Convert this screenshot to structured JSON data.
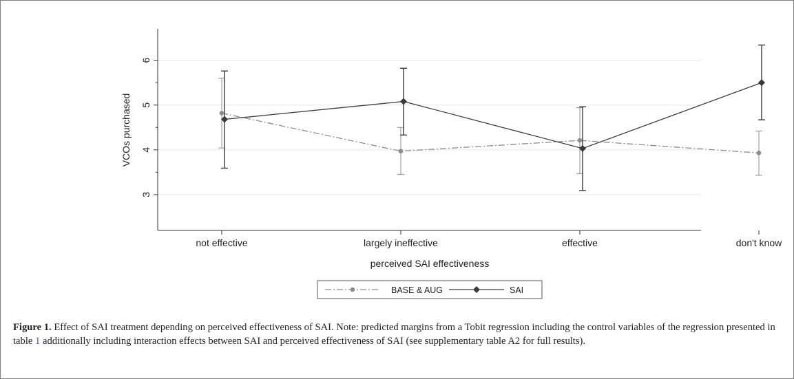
{
  "chart_data": {
    "type": "line",
    "categories": [
      "not effective",
      "largely ineffective",
      "effective",
      "don't know"
    ],
    "xlabel": "perceived SAI effectiveness",
    "ylabel": "VCOs purchased",
    "yticks": [
      3,
      4,
      5,
      6
    ],
    "ylim": [
      2.2,
      6.7
    ],
    "grid": true,
    "legend_position": "bottom",
    "series": [
      {
        "name": "BASE & AUG",
        "style": "dash-dot",
        "marker": "circle",
        "color": "#8c8c8c",
        "values": [
          4.82,
          3.97,
          4.21,
          3.93
        ],
        "ci_low": [
          4.04,
          3.45,
          3.47,
          3.43
        ],
        "ci_high": [
          5.6,
          4.5,
          4.94,
          4.42
        ]
      },
      {
        "name": "SAI",
        "style": "solid",
        "marker": "diamond",
        "color": "#3a3a3a",
        "values": [
          4.68,
          5.08,
          4.03,
          5.5
        ],
        "ci_low": [
          3.59,
          4.33,
          3.09,
          4.67
        ],
        "ci_high": [
          5.76,
          5.82,
          4.96,
          6.34
        ]
      }
    ]
  },
  "caption": {
    "label": "Figure 1.",
    "text_1": " Effect of SAI treatment depending on perceived effectiveness of SAI. Note: predicted margins from a Tobit regression including the control variables of the regression presented in table ",
    "table_ref": "1",
    "text_2": " additionally including interaction effects between SAI and perceived effectiveness of SAI (see supplementary table A2 for full results)."
  }
}
